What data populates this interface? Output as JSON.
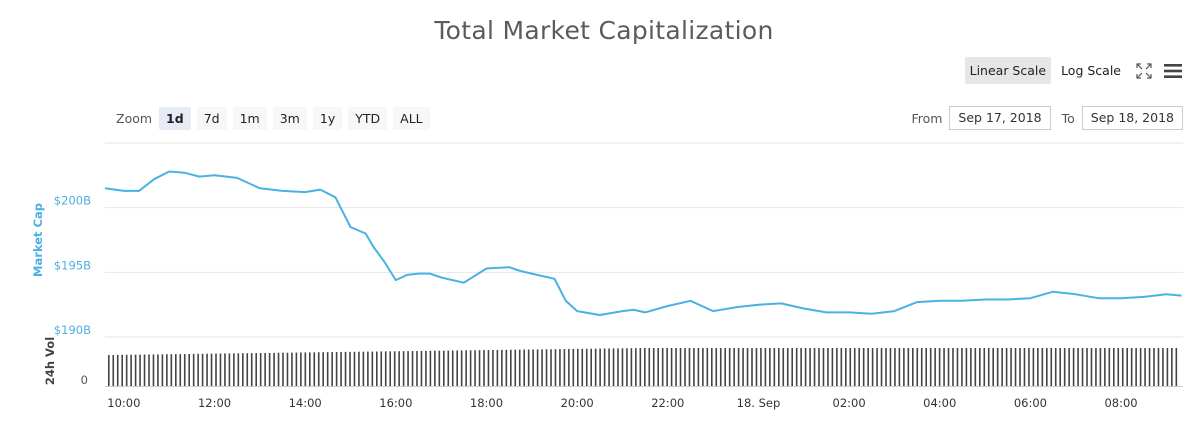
{
  "header": {
    "title": "Total Market Capitalization"
  },
  "scale": {
    "linear_label": "Linear Scale",
    "log_label": "Log Scale",
    "active": "linear"
  },
  "toolbar": {
    "fullscreen_icon": "fullscreen-icon",
    "menu_icon": "hamburger-menu-icon"
  },
  "zoom": {
    "label": "Zoom",
    "buttons": [
      "1d",
      "7d",
      "1m",
      "3m",
      "1y",
      "YTD",
      "ALL"
    ],
    "active": "1d"
  },
  "range": {
    "from_label": "From",
    "from_value": "Sep 17, 2018",
    "to_label": "To",
    "to_value": "Sep 18, 2018"
  },
  "colors": {
    "line": "#4ab1e3",
    "axis_label": "#4ab1e3",
    "volume": "#444444",
    "grid": "#e6e6e6"
  },
  "chart_data": {
    "type": "line",
    "title": "Total Market Capitalization",
    "x": [
      "09:35",
      "10:00",
      "10:20",
      "10:40",
      "11:00",
      "11:20",
      "11:40",
      "12:00",
      "12:30",
      "13:00",
      "13:30",
      "14:00",
      "14:20",
      "14:40",
      "15:00",
      "15:20",
      "15:30",
      "15:45",
      "16:00",
      "16:15",
      "16:30",
      "16:45",
      "17:00",
      "17:30",
      "18:00",
      "18:30",
      "18:45",
      "19:00",
      "19:30",
      "19:45",
      "20:00",
      "20:30",
      "21:00",
      "21:15",
      "21:30",
      "22:00",
      "22:30",
      "23:00",
      "23:30",
      "00:00",
      "00:30",
      "01:00",
      "01:30",
      "02:00",
      "02:30",
      "03:00",
      "03:30",
      "04:00",
      "04:30",
      "05:00",
      "05:30",
      "06:00",
      "06:30",
      "07:00",
      "07:30",
      "08:00",
      "08:30",
      "09:00",
      "09:20"
    ],
    "series": [
      {
        "name": "Market Cap",
        "values": [
          201.5,
          201.3,
          201.3,
          202.2,
          202.8,
          202.7,
          202.4,
          202.5,
          202.3,
          201.5,
          201.3,
          201.2,
          201.4,
          200.8,
          198.5,
          198.0,
          197.0,
          195.8,
          194.4,
          194.8,
          194.9,
          194.9,
          194.6,
          194.2,
          195.3,
          195.4,
          195.1,
          194.9,
          194.5,
          192.8,
          192.0,
          191.7,
          192.0,
          192.1,
          191.9,
          192.4,
          192.8,
          192.0,
          192.3,
          192.5,
          192.6,
          192.2,
          191.9,
          191.9,
          191.8,
          192.0,
          192.7,
          192.8,
          192.8,
          192.9,
          192.9,
          193.0,
          193.5,
          193.3,
          193.0,
          193.0,
          193.1,
          193.3,
          193.2
        ],
        "unit": "B USD"
      }
    ],
    "volume": {
      "name": "24h Vol"
    },
    "yaxis": {
      "label": "Market Cap",
      "ticks": [
        "$190B",
        "$195B",
        "$200B"
      ],
      "range": [
        190,
        205
      ]
    },
    "volume_axis": {
      "label": "24h Vol",
      "ticks": [
        "0"
      ]
    },
    "xaxis": {
      "ticks": [
        "10:00",
        "12:00",
        "14:00",
        "16:00",
        "18:00",
        "20:00",
        "22:00",
        "18. Sep",
        "02:00",
        "04:00",
        "06:00",
        "08:00"
      ]
    },
    "grid": true,
    "legend": "none"
  }
}
